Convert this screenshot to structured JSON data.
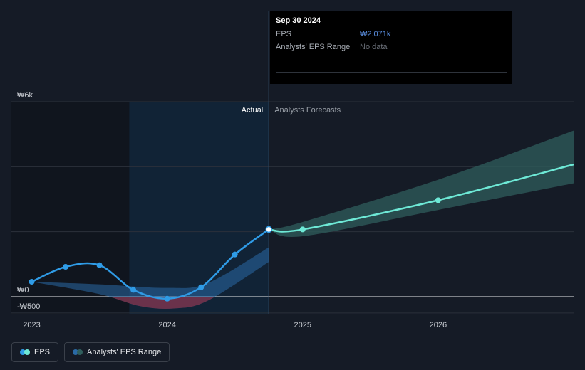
{
  "colors": {
    "background": "#151b26",
    "actual_line": "#2f9be6",
    "forecast_line": "#6ee9d6",
    "forecast_band": "#2f5e5c",
    "actual_band": "#2a6aa6",
    "negative_band": "#8a2a3a",
    "highlight_region": "#0f2a44"
  },
  "tooltip": {
    "date": "Sep 30 2024",
    "rows": [
      {
        "key": "EPS",
        "value": "₩2.071k"
      },
      {
        "key": "Analysts' EPS Range",
        "value": "No data"
      }
    ]
  },
  "section_labels": {
    "actual": "Actual",
    "forecast": "Analysts Forecasts"
  },
  "legend": [
    {
      "label": "EPS",
      "icon": "eps-legend-icon",
      "colors": [
        "#2f9be6",
        "#6ee9d6"
      ]
    },
    {
      "label": "Analysts' EPS Range",
      "icon": "range-legend-icon",
      "colors": [
        "#2a6aa6",
        "#2f5e5c"
      ]
    }
  ],
  "chart_data": {
    "type": "line",
    "y_tick_labels": [
      {
        "label": "₩6k",
        "value": 6000
      },
      {
        "label": "₩0",
        "value": 0
      },
      {
        "label": "-₩500",
        "value": -500
      }
    ],
    "y_grid_values": [
      6000,
      4000,
      2000,
      0,
      -500
    ],
    "ylim": [
      -500,
      6000
    ],
    "x_ticks": [
      2023,
      2024,
      2025,
      2026
    ],
    "xlim": [
      2022.85,
      2027.0
    ],
    "highlight_range": [
      2023.72,
      2024.75
    ],
    "series": [
      {
        "kind": "actual",
        "points": [
          [
            2023.0,
            460
          ],
          [
            2023.25,
            920
          ],
          [
            2023.5,
            970
          ],
          [
            2023.75,
            210
          ],
          [
            2024.0,
            -60
          ],
          [
            2024.25,
            290
          ],
          [
            2024.5,
            1300
          ],
          [
            2024.75,
            2071
          ]
        ]
      },
      {
        "kind": "forecast",
        "points": [
          [
            2024.75,
            2071
          ],
          [
            2025.0,
            2071
          ],
          [
            2026.0,
            2970
          ],
          [
            2027.0,
            4070
          ]
        ]
      }
    ],
    "actual_range": {
      "upper": [
        [
          2023.0,
          460
        ],
        [
          2023.5,
          380
        ],
        [
          2024.0,
          270
        ],
        [
          2024.3,
          420
        ],
        [
          2024.75,
          1520
        ]
      ],
      "lower": [
        [
          2023.0,
          460
        ],
        [
          2023.5,
          80
        ],
        [
          2023.8,
          -290
        ],
        [
          2024.05,
          -360
        ],
        [
          2024.3,
          -120
        ],
        [
          2024.75,
          1070
        ]
      ]
    },
    "forecast_range": {
      "upper": [
        [
          2024.75,
          2071
        ],
        [
          2025.0,
          2300
        ],
        [
          2026.0,
          3600
        ],
        [
          2027.0,
          5110
        ]
      ],
      "lower": [
        [
          2024.75,
          2071
        ],
        [
          2025.0,
          1860
        ],
        [
          2026.0,
          2670
        ],
        [
          2027.0,
          3490
        ]
      ]
    }
  }
}
